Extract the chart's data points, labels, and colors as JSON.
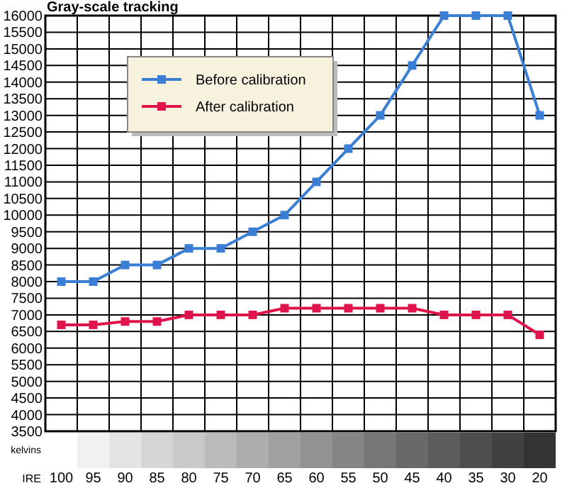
{
  "chart_data": {
    "type": "line",
    "title": "Gray-scale tracking",
    "xlabel": "IRE",
    "ylabel": "kelvins",
    "categories": [
      "100",
      "95",
      "90",
      "85",
      "80",
      "75",
      "70",
      "65",
      "60",
      "55",
      "50",
      "45",
      "40",
      "35",
      "30",
      "20"
    ],
    "series": [
      {
        "name": "Before calibration",
        "color": "#3a7fd5",
        "values": [
          8000,
          8000,
          8500,
          8500,
          9000,
          9000,
          9500,
          10000,
          11000,
          12000,
          13000,
          14500,
          16000,
          16000,
          16000,
          13000
        ]
      },
      {
        "name": "After calibration",
        "color": "#e0144c",
        "values": [
          6700,
          6700,
          6800,
          6800,
          7000,
          7000,
          7000,
          7200,
          7200,
          7200,
          7200,
          7200,
          7000,
          7000,
          7000,
          6400
        ]
      }
    ],
    "ylim": [
      3500,
      16000
    ],
    "yticks": [
      3500,
      4000,
      4500,
      5000,
      5500,
      6000,
      6500,
      7000,
      7500,
      8000,
      8500,
      9000,
      9500,
      10000,
      10500,
      11000,
      11500,
      12000,
      12500,
      13000,
      13500,
      14000,
      14500,
      15000,
      15500,
      16000
    ],
    "grid": true,
    "legend": "top left",
    "marker": "square",
    "line_style": "solid"
  }
}
